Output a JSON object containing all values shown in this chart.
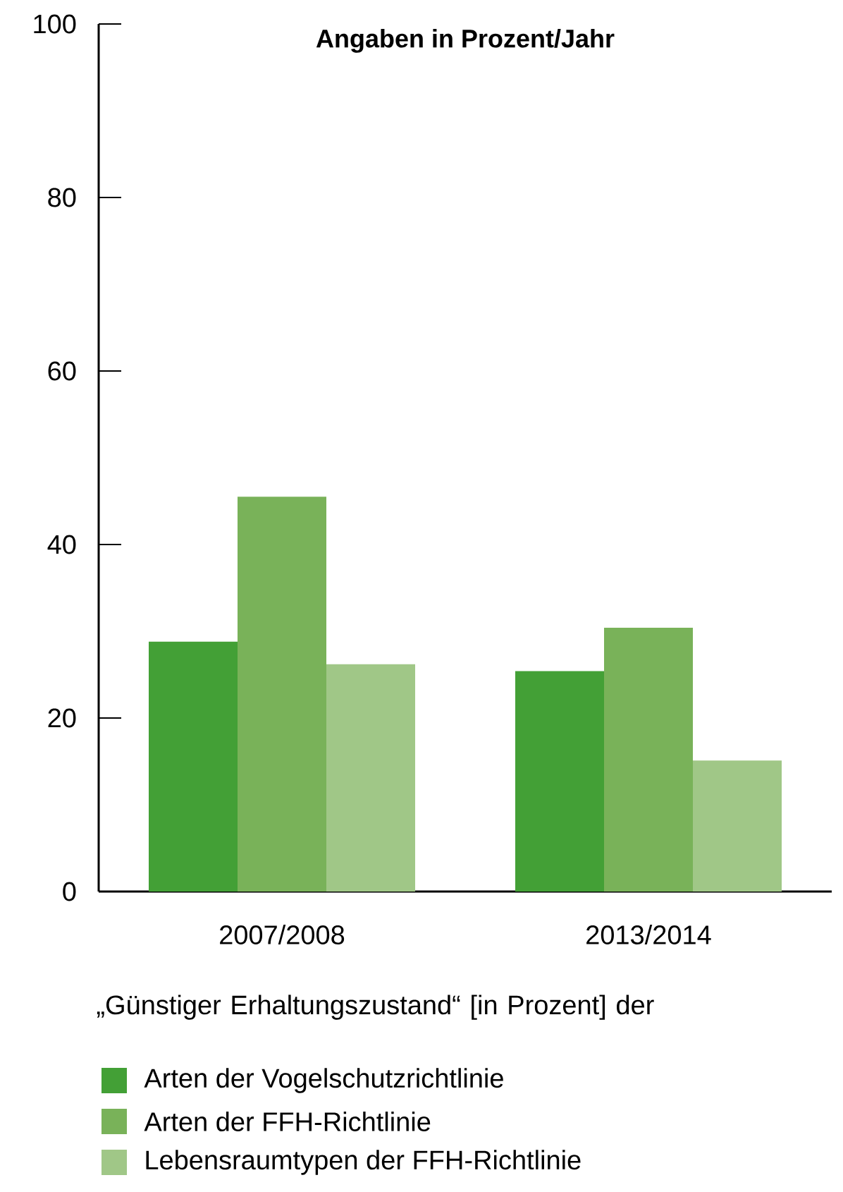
{
  "chart_data": {
    "type": "bar",
    "title": "Angaben in Prozent/Jahr",
    "categories": [
      "2007/2008",
      "2013/2014"
    ],
    "series": [
      {
        "name": "Arten der Vogelschutzrichtlinie",
        "color": "#43a036",
        "values": [
          28.8,
          25.4
        ]
      },
      {
        "name": "Arten der FFH-Richtlinie",
        "color": "#79b259",
        "values": [
          45.5,
          30.4
        ]
      },
      {
        "name": "Lebensraumtypen der FFH-Richtlinie",
        "color": "#a0c787",
        "values": [
          26.2,
          15.1
        ]
      }
    ],
    "ylim": [
      0,
      100
    ],
    "yticks": [
      0,
      20,
      40,
      60,
      80,
      100
    ],
    "legend": "bottom",
    "legend_title": "„Günstiger Erhaltungszustand“ [in Prozent] der"
  }
}
